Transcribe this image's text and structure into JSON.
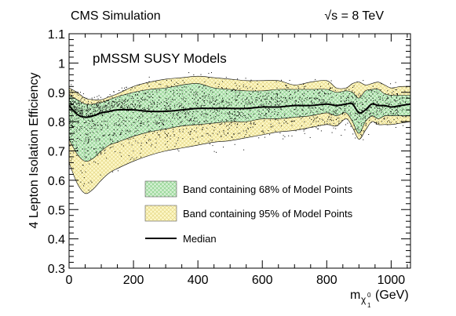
{
  "chart_data": {
    "type": "area",
    "title": "",
    "header_left": "CMS Simulation",
    "header_right": "√s = 8 TeV",
    "inner_title": "pMSSM SUSY Models",
    "xlabel": "m",
    "xlabel_sub": "χ",
    "xlabel_subsub": "1",
    "xlabel_sup": "0",
    "xlabel_unit": "(GeV)",
    "ylabel": "4 Lepton Isolation Efficiency",
    "xlim": [
      0,
      1060
    ],
    "ylim": [
      0.3,
      1.1
    ],
    "x_ticks": [
      0,
      200,
      400,
      600,
      800,
      1000
    ],
    "x_tick_labels": [
      "0",
      "200",
      "400",
      "600",
      "800",
      "1000"
    ],
    "y_ticks": [
      0.3,
      0.4,
      0.5,
      0.6,
      0.7,
      0.8,
      0.9,
      1.0,
      1.1
    ],
    "y_tick_labels": [
      "0.3",
      "0.4",
      "0.5",
      "0.6",
      "0.7",
      "0.8",
      "0.9",
      "1",
      "1.1"
    ],
    "grid": false,
    "legend": {
      "position": "lower-center",
      "entries": [
        {
          "label": "Band containing 68% of Model Points",
          "color": "#cdeccd",
          "hatch": "#79c879"
        },
        {
          "label": "Band containing 95% of Model Points",
          "color": "#fbf6c2",
          "hatch": "#e8d87a"
        },
        {
          "label": "Median",
          "color": "#000000"
        }
      ]
    },
    "x": [
      0,
      25,
      50,
      75,
      100,
      125,
      150,
      200,
      250,
      300,
      350,
      400,
      450,
      500,
      550,
      600,
      650,
      700,
      750,
      800,
      830,
      860,
      880,
      900,
      920,
      940,
      960,
      980,
      1000,
      1030,
      1060
    ],
    "series": [
      {
        "name": "Band containing 95% of Model Points",
        "role": "band95",
        "upper": [
          0.915,
          0.9,
          0.88,
          0.875,
          0.875,
          0.885,
          0.895,
          0.92,
          0.935,
          0.945,
          0.95,
          0.955,
          0.95,
          0.945,
          0.94,
          0.94,
          0.94,
          0.925,
          0.935,
          0.94,
          0.915,
          0.915,
          0.93,
          0.935,
          0.925,
          0.93,
          0.935,
          0.925,
          0.915,
          0.92,
          0.92
        ],
        "lower": [
          0.66,
          0.59,
          0.555,
          0.57,
          0.6,
          0.625,
          0.64,
          0.665,
          0.685,
          0.7,
          0.71,
          0.72,
          0.73,
          0.735,
          0.745,
          0.755,
          0.765,
          0.77,
          0.78,
          0.79,
          0.785,
          0.81,
          0.78,
          0.74,
          0.77,
          0.8,
          0.79,
          0.79,
          0.79,
          0.795,
          0.8
        ]
      },
      {
        "name": "Band containing 68% of Model Points",
        "role": "band68",
        "upper": [
          0.89,
          0.875,
          0.86,
          0.86,
          0.865,
          0.875,
          0.885,
          0.9,
          0.91,
          0.915,
          0.925,
          0.93,
          0.915,
          0.91,
          0.905,
          0.905,
          0.91,
          0.91,
          0.91,
          0.91,
          0.9,
          0.905,
          0.9,
          0.88,
          0.905,
          0.91,
          0.91,
          0.895,
          0.89,
          0.89,
          0.89
        ],
        "lower": [
          0.74,
          0.69,
          0.665,
          0.675,
          0.7,
          0.72,
          0.73,
          0.75,
          0.765,
          0.775,
          0.785,
          0.79,
          0.795,
          0.8,
          0.8,
          0.81,
          0.81,
          0.815,
          0.82,
          0.83,
          0.82,
          0.83,
          0.8,
          0.76,
          0.8,
          0.82,
          0.81,
          0.82,
          0.82,
          0.82,
          0.82
        ]
      },
      {
        "name": "Median",
        "role": "median",
        "values": [
          0.855,
          0.825,
          0.815,
          0.82,
          0.83,
          0.835,
          0.84,
          0.84,
          0.835,
          0.835,
          0.84,
          0.845,
          0.845,
          0.845,
          0.845,
          0.85,
          0.85,
          0.855,
          0.855,
          0.86,
          0.855,
          0.86,
          0.86,
          0.83,
          0.84,
          0.86,
          0.855,
          0.855,
          0.85,
          0.855,
          0.86
        ]
      }
    ],
    "scatter_note_points": "dense cloud of model points between roughly 0.5 and 0.97"
  }
}
